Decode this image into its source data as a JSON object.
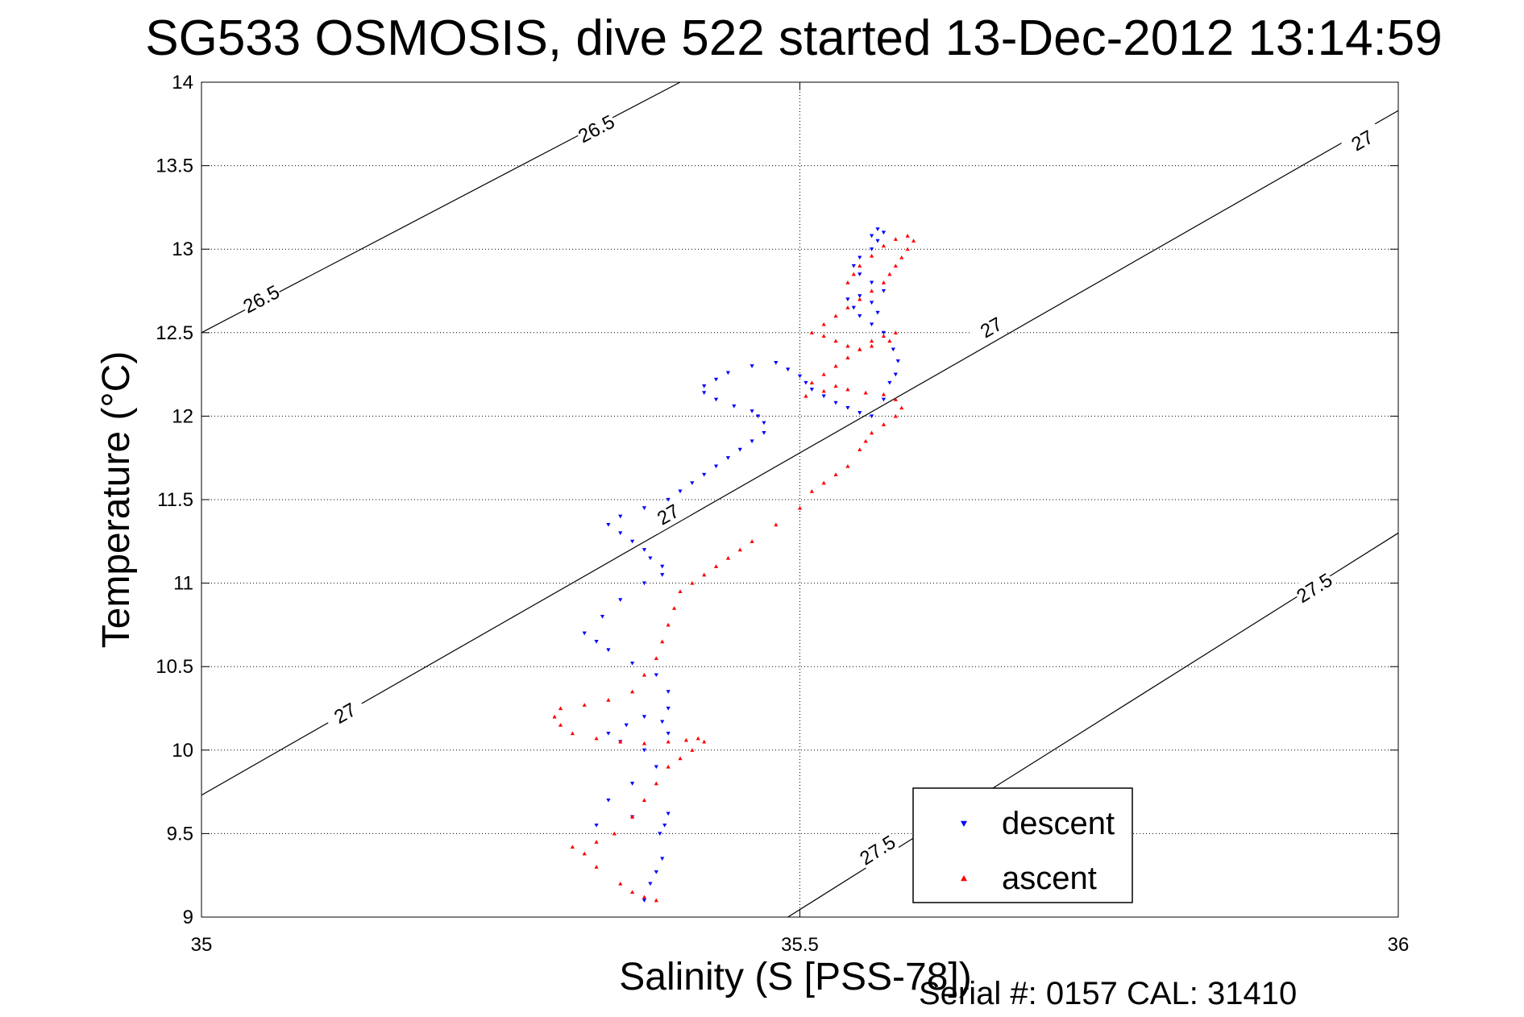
{
  "chart_data": {
    "type": "scatter",
    "title": "SG533 OSMOSIS, dive 522 started 13-Dec-2012 13:14:59",
    "xlabel": "Salinity (S [PSS-78])",
    "ylabel": "Temperature (°C)",
    "xlim": [
      35,
      36
    ],
    "ylim": [
      9,
      14
    ],
    "x_ticks": [
      35,
      35.5,
      36
    ],
    "x_tick_labels": [
      "35",
      "35.5",
      "36"
    ],
    "y_ticks": [
      9,
      9.5,
      10,
      10.5,
      11,
      11.5,
      12,
      12.5,
      13,
      13.5,
      14
    ],
    "y_tick_labels": [
      "9",
      "9.5",
      "10",
      "10.5",
      "11",
      "11.5",
      "12",
      "12.5",
      "13",
      "13.5",
      "14"
    ],
    "grid": true,
    "grid_x": [
      35.5
    ],
    "legend_position": "bottom-right",
    "footer": "Serial #: 0157  CAL: 31410",
    "density_contours": [
      {
        "level": "26.5",
        "points": [
          [
            35,
            12.5
          ],
          [
            35.4,
            14.0
          ]
        ],
        "labels": [
          {
            "text": "26.5",
            "x": 35.05,
            "y": 12.7
          },
          {
            "text": "26.5",
            "x": 35.33,
            "y": 13.72
          }
        ]
      },
      {
        "level": "27",
        "points": [
          [
            35,
            9.73
          ],
          [
            36,
            13.83
          ]
        ],
        "labels": [
          {
            "text": "27",
            "x": 35.12,
            "y": 10.22
          },
          {
            "text": "27",
            "x": 35.39,
            "y": 11.41
          },
          {
            "text": "27",
            "x": 35.66,
            "y": 12.53
          },
          {
            "text": "27",
            "x": 35.97,
            "y": 13.65
          }
        ]
      },
      {
        "level": "27.5",
        "points": [
          [
            35.49,
            9.0
          ],
          [
            36,
            11.3
          ]
        ],
        "labels": [
          {
            "text": "27.5",
            "x": 35.565,
            "y": 9.4
          },
          {
            "text": "27.5",
            "x": 35.93,
            "y": 10.97
          }
        ]
      }
    ],
    "series": [
      {
        "name": "descent",
        "color": "#0000ff",
        "marker": "triangle-down",
        "x": [
          35.37,
          35.375,
          35.38,
          35.385,
          35.383,
          35.387,
          35.39,
          35.36,
          35.33,
          35.34,
          35.36,
          35.38,
          35.37,
          35.35,
          35.34,
          35.355,
          35.37,
          35.385,
          35.39,
          35.39,
          35.39,
          35.38,
          35.36,
          35.34,
          35.33,
          35.32,
          35.335,
          35.35,
          35.37,
          35.385,
          35.385,
          35.375,
          35.37,
          35.36,
          35.35,
          35.34,
          35.35,
          35.37,
          35.39,
          35.4,
          35.41,
          35.42,
          35.43,
          35.44,
          35.45,
          35.46,
          35.47,
          35.47,
          35.465,
          35.46,
          35.445,
          35.43,
          35.42,
          35.42,
          35.43,
          35.44,
          35.46,
          35.48,
          35.49,
          35.5,
          35.505,
          35.51,
          35.52,
          35.53,
          35.54,
          35.55,
          35.56,
          35.57,
          35.575,
          35.58,
          35.582,
          35.578,
          35.57,
          35.56,
          35.55,
          35.545,
          35.54,
          35.55,
          35.56,
          35.565,
          35.57,
          35.56,
          35.55,
          35.545,
          35.55,
          35.56,
          35.565,
          35.57,
          35.565,
          35.56
        ],
        "y": [
          9.1,
          9.2,
          9.27,
          9.35,
          9.5,
          9.55,
          9.62,
          9.6,
          9.55,
          9.7,
          9.8,
          9.9,
          10.0,
          10.05,
          10.1,
          10.15,
          10.2,
          10.17,
          10.1,
          10.25,
          10.35,
          10.45,
          10.52,
          10.6,
          10.65,
          10.7,
          10.8,
          10.9,
          11.0,
          11.05,
          11.1,
          11.15,
          11.2,
          11.25,
          11.3,
          11.35,
          11.4,
          11.45,
          11.5,
          11.55,
          11.6,
          11.65,
          11.7,
          11.75,
          11.8,
          11.85,
          11.9,
          11.96,
          12.0,
          12.03,
          12.06,
          12.1,
          12.14,
          12.18,
          12.22,
          12.26,
          12.3,
          12.32,
          12.28,
          12.24,
          12.2,
          12.16,
          12.12,
          12.08,
          12.05,
          12.02,
          12.0,
          12.1,
          12.2,
          12.25,
          12.33,
          12.4,
          12.5,
          12.55,
          12.6,
          12.65,
          12.7,
          12.72,
          12.68,
          12.62,
          12.75,
          12.8,
          12.85,
          12.9,
          12.95,
          13.0,
          13.05,
          13.1,
          13.12,
          13.08
        ]
      },
      {
        "name": "ascent",
        "color": "#ff0000",
        "marker": "triangle-up",
        "x": [
          35.38,
          35.37,
          35.36,
          35.35,
          35.33,
          35.32,
          35.31,
          35.33,
          35.345,
          35.36,
          35.37,
          35.38,
          35.39,
          35.4,
          35.41,
          35.42,
          35.415,
          35.405,
          35.39,
          35.37,
          35.35,
          35.33,
          35.31,
          35.3,
          35.295,
          35.3,
          35.32,
          35.34,
          35.36,
          35.37,
          35.38,
          35.385,
          35.39,
          35.395,
          35.4,
          35.41,
          35.42,
          35.43,
          35.44,
          35.45,
          35.46,
          35.48,
          35.5,
          35.51,
          35.52,
          35.53,
          35.54,
          35.55,
          35.555,
          35.56,
          35.57,
          35.58,
          35.585,
          35.58,
          35.57,
          35.555,
          35.54,
          35.53,
          35.52,
          35.505,
          35.51,
          35.52,
          35.53,
          35.54,
          35.55,
          35.56,
          35.57,
          35.58,
          35.575,
          35.56,
          35.55,
          35.54,
          35.53,
          35.52,
          35.51,
          35.52,
          35.53,
          35.54,
          35.55,
          35.56,
          35.57,
          35.575,
          35.58,
          35.585,
          35.59,
          35.595,
          35.59,
          35.58,
          35.57,
          35.56,
          35.55,
          35.545,
          35.54
        ],
        "y": [
          9.1,
          9.12,
          9.15,
          9.2,
          9.3,
          9.38,
          9.42,
          9.45,
          9.5,
          9.6,
          9.7,
          9.8,
          9.9,
          9.95,
          10.0,
          10.05,
          10.07,
          10.06,
          10.05,
          10.04,
          10.05,
          10.07,
          10.1,
          10.15,
          10.2,
          10.25,
          10.27,
          10.3,
          10.35,
          10.45,
          10.55,
          10.65,
          10.75,
          10.85,
          10.95,
          11.0,
          11.05,
          11.1,
          11.15,
          11.2,
          11.25,
          11.35,
          11.45,
          11.55,
          11.6,
          11.65,
          11.7,
          11.8,
          11.85,
          11.9,
          11.95,
          12.0,
          12.05,
          12.1,
          12.13,
          12.14,
          12.16,
          12.18,
          12.15,
          12.12,
          12.2,
          12.25,
          12.3,
          12.35,
          12.4,
          12.45,
          12.48,
          12.5,
          12.45,
          12.42,
          12.4,
          12.42,
          12.45,
          12.48,
          12.5,
          12.55,
          12.6,
          12.65,
          12.7,
          12.75,
          12.8,
          12.85,
          12.9,
          12.95,
          13.0,
          13.05,
          13.08,
          13.06,
          13.02,
          12.96,
          12.9,
          12.85,
          12.8
        ]
      }
    ]
  }
}
